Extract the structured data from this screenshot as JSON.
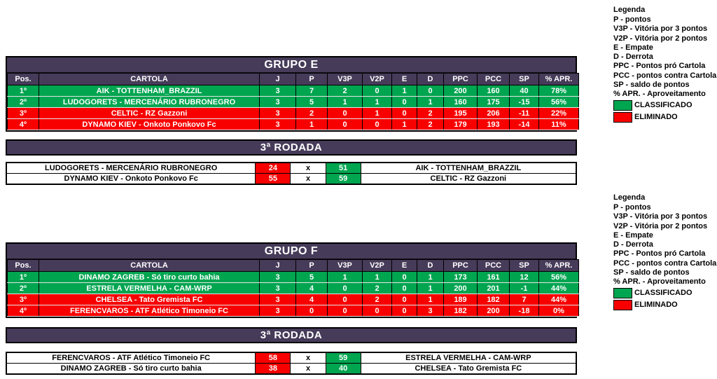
{
  "colors": {
    "band_purple": "#463B59",
    "classified_green": "#00A550",
    "eliminated_red": "#F80000",
    "grid_line": "#000000"
  },
  "columns": [
    "Pos.",
    "CARTOLA",
    "J",
    "P",
    "V3P",
    "V2P",
    "E",
    "D",
    "PPC",
    "PCC",
    "SP",
    "% APR."
  ],
  "groups": [
    {
      "title": "GRUPO E",
      "rows": [
        {
          "status": "classified",
          "cells": [
            "1º",
            "AIK - TOTTENHAM_BRAZZIL",
            "3",
            "7",
            "2",
            "0",
            "1",
            "0",
            "200",
            "160",
            "40",
            "78%"
          ]
        },
        {
          "status": "classified",
          "cells": [
            "2º",
            "LUDOGORETS - MERCENÁRIO RUBRONEGRO",
            "3",
            "5",
            "1",
            "1",
            "0",
            "1",
            "160",
            "175",
            "-15",
            "56%"
          ]
        },
        {
          "status": "eliminated",
          "cells": [
            "3º",
            "CELTIC - RZ Gazzoni",
            "3",
            "2",
            "0",
            "1",
            "0",
            "2",
            "195",
            "206",
            "-11",
            "22%"
          ]
        },
        {
          "status": "eliminated",
          "cells": [
            "4º",
            "DYNAMO KIEV - Onkoto Ponkovo Fc",
            "3",
            "1",
            "0",
            "0",
            "1",
            "2",
            "179",
            "193",
            "-14",
            "11%"
          ]
        }
      ],
      "round": {
        "title": "3ª RODADA",
        "matches": [
          {
            "home": "LUDOGORETS - MERCENÁRIO RUBRONEGRO",
            "home_score": "24",
            "separator": "x",
            "away_score": "51",
            "away": "AIK - TOTTENHAM_BRAZZIL",
            "home_result": "eliminated",
            "away_result": "classified"
          },
          {
            "home": "DYNAMO KIEV - Onkoto Ponkovo Fc",
            "home_score": "55",
            "separator": "x",
            "away_score": "59",
            "away": "CELTIC - RZ Gazzoni",
            "home_result": "eliminated",
            "away_result": "classified"
          }
        ]
      }
    },
    {
      "title": "GRUPO F",
      "rows": [
        {
          "status": "classified",
          "cells": [
            "1º",
            "DINAMO ZAGREB - Só tiro curto bahia",
            "3",
            "5",
            "1",
            "1",
            "0",
            "1",
            "173",
            "161",
            "12",
            "56%"
          ]
        },
        {
          "status": "classified",
          "cells": [
            "2º",
            "ESTRELA VERMELHA - CAM-WRP",
            "3",
            "4",
            "0",
            "2",
            "0",
            "1",
            "200",
            "201",
            "-1",
            "44%"
          ]
        },
        {
          "status": "eliminated",
          "cells": [
            "3º",
            "CHELSEA - Tato Gremista FC",
            "3",
            "4",
            "0",
            "2",
            "0",
            "1",
            "189",
            "182",
            "7",
            "44%"
          ]
        },
        {
          "status": "eliminated",
          "cells": [
            "4º",
            "FERENCVAROS - ATF Atlético Timoneio FC",
            "3",
            "0",
            "0",
            "0",
            "0",
            "3",
            "182",
            "200",
            "-18",
            "0%"
          ]
        }
      ],
      "round": {
        "title": "3ª RODADA",
        "matches": [
          {
            "home": "FERENCVAROS - ATF Atlético Timoneio FC",
            "home_score": "58",
            "separator": "x",
            "away_score": "59",
            "away": "ESTRELA VERMELHA - CAM-WRP",
            "home_result": "eliminated",
            "away_result": "classified"
          },
          {
            "home": "DINAMO ZAGREB - Só tiro curto bahia",
            "home_score": "38",
            "separator": "x",
            "away_score": "40",
            "away": "CHELSEA - Tato Gremista FC",
            "home_result": "eliminated",
            "away_result": "classified"
          }
        ]
      }
    }
  ],
  "legend": {
    "title": "Legenda",
    "items": [
      "P - pontos",
      "V3P - Vitória por 3 pontos",
      "V2P - Vitória por 2 pontos",
      "E - Empate",
      "D - Derrota",
      "PPC - Pontos pró Cartola",
      "PCC - pontos contra Cartola",
      "SP - saldo de pontos",
      "% APR. - Aproveitamento"
    ],
    "classified_label": "CLASSIFICADO",
    "eliminated_label": "ELIMINADO"
  }
}
